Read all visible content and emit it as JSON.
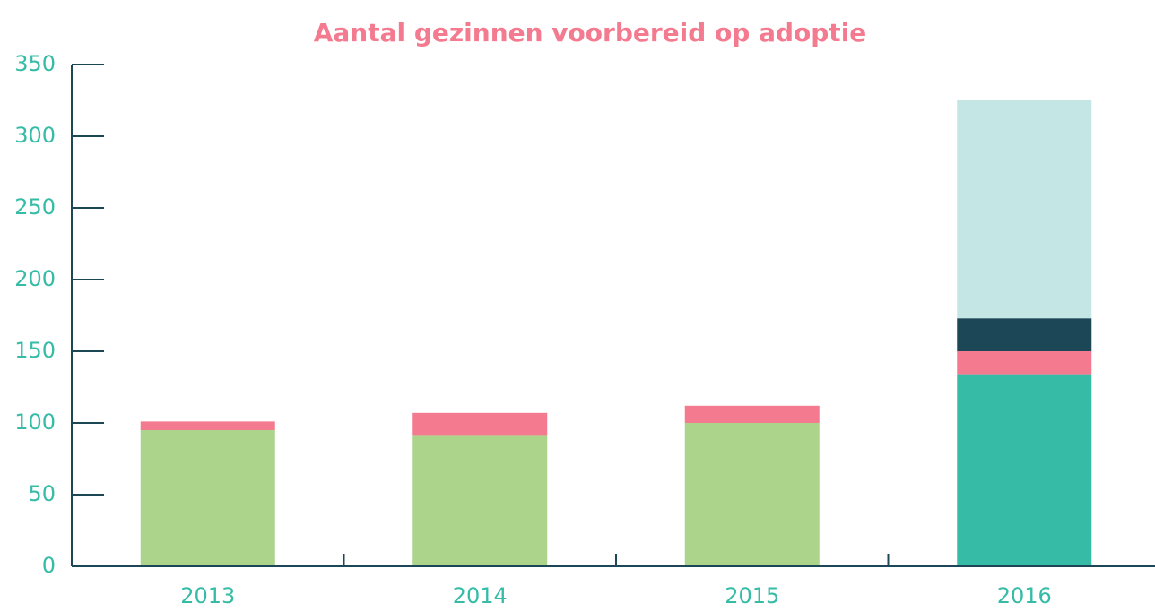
{
  "chart_data": {
    "type": "stacked-bar",
    "title": "Aantal gezinnen voorbereid op adoptie",
    "categories": [
      "2013",
      "2014",
      "2015",
      "2016"
    ],
    "series": [
      {
        "color": "#acd48a",
        "values": [
          95,
          91,
          100,
          null
        ]
      },
      {
        "color": "#36bca6",
        "values": [
          null,
          null,
          null,
          134
        ]
      },
      {
        "color": "#f47a8f",
        "values": [
          6,
          16,
          12,
          16
        ]
      },
      {
        "color": "#1b4756",
        "values": [
          null,
          null,
          null,
          23
        ]
      },
      {
        "color": "#c4e6e5",
        "values": [
          null,
          null,
          null,
          152
        ]
      }
    ],
    "ylim": [
      0,
      350
    ],
    "yticks": [
      0,
      50,
      100,
      150,
      200,
      250,
      300,
      350
    ]
  }
}
